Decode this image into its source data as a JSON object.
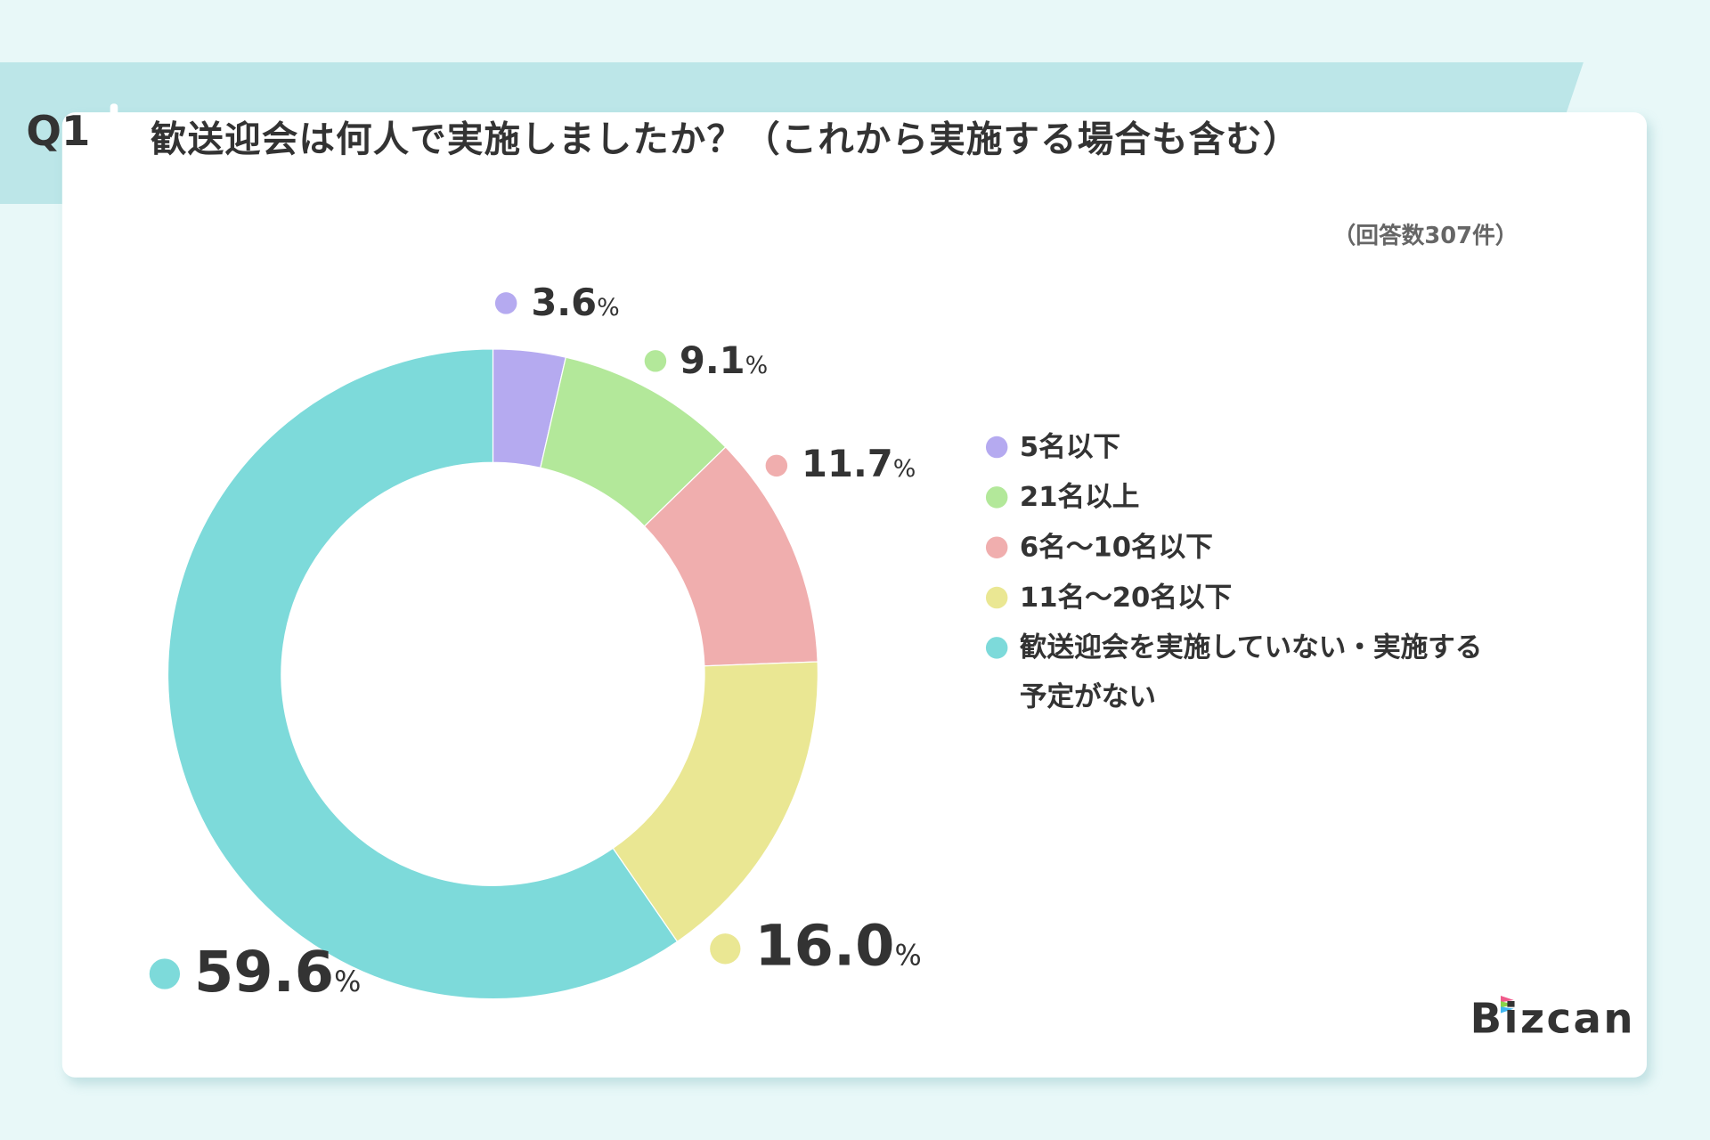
{
  "header": {
    "q": "Q1",
    "title": "歓送迎会は何人で実施しましたか？（これから実施する場合も含む）",
    "responses": "（回答数307件）"
  },
  "chart_data": {
    "type": "pie",
    "donut": true,
    "unit": "%",
    "categories": [
      "5名以下",
      "21名以上",
      "6名〜10名以下",
      "11名〜20名以下",
      "歓送迎会を実施していない・実施する予定がない"
    ],
    "values": [
      3.6,
      9.1,
      11.7,
      16.0,
      59.6
    ],
    "labels": [
      "3.6",
      "9.1",
      "11.7",
      "16.0",
      "59.6"
    ],
    "colors": [
      "#b5aaf0",
      "#b3e89a",
      "#f0aeae",
      "#eae793",
      "#7ddada"
    ],
    "legend_placement": "right"
  },
  "legend": {
    "items": [
      "5名以下",
      "21名以上",
      "6名〜10名以下",
      "11名〜20名以下",
      "歓送迎会を実施していない・実施する"
    ],
    "item5_line2": "予定がない"
  },
  "brand": {
    "logo": "Bizcan"
  }
}
